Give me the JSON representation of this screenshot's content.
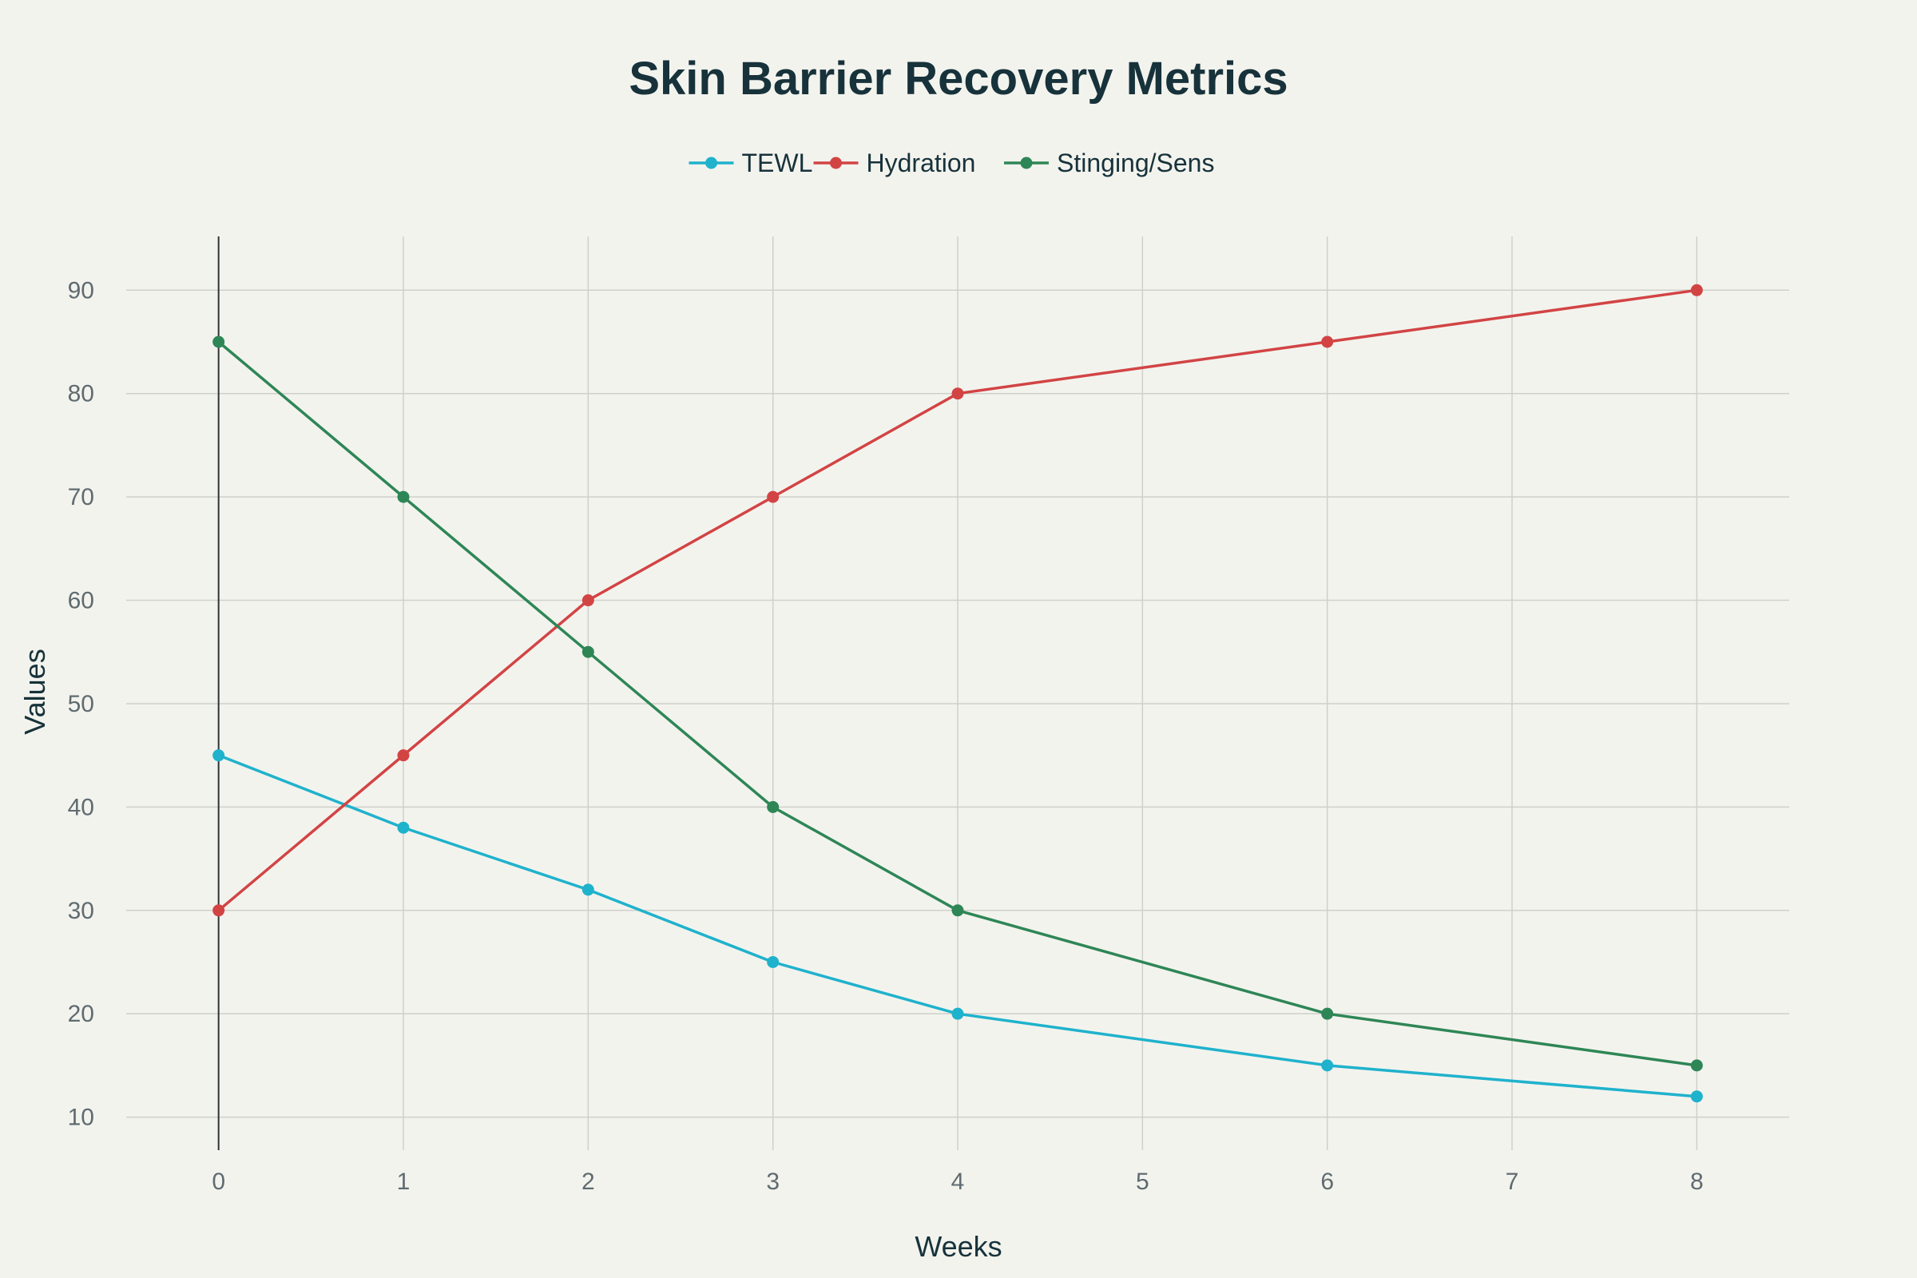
{
  "chart_data": {
    "type": "line",
    "title": "Skin Barrier Recovery Metrics",
    "xlabel": "Weeks",
    "ylabel": "Values",
    "x": [
      0,
      1,
      2,
      3,
      4,
      6,
      8
    ],
    "x_ticks": [
      "0",
      "1",
      "2",
      "3",
      "4",
      "5",
      "6",
      "7",
      "8"
    ],
    "y_ticks": [
      "10",
      "20",
      "30",
      "40",
      "50",
      "60",
      "70",
      "80",
      "90"
    ],
    "xlim": [
      -0.5,
      8.5
    ],
    "ylim": [
      6.8,
      95.2
    ],
    "grid": true,
    "legend_position": "top-center",
    "series": [
      {
        "name": "TEWL",
        "color": "#1fb2cc",
        "values": [
          45,
          38,
          32,
          25,
          20,
          15,
          12
        ]
      },
      {
        "name": "Hydration",
        "color": "#d24444",
        "values": [
          30,
          45,
          60,
          70,
          80,
          85,
          90
        ]
      },
      {
        "name": "Stinging/Sens",
        "color": "#2e8656",
        "values": [
          85,
          70,
          55,
          40,
          30,
          20,
          15
        ]
      }
    ]
  }
}
